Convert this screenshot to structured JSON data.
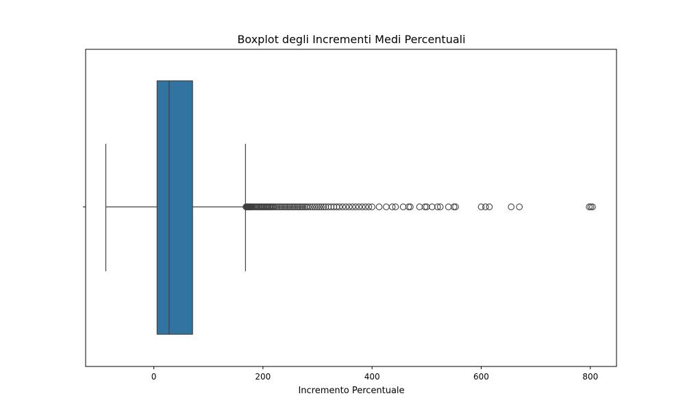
{
  "chart_data": {
    "type": "box",
    "orientation": "horizontal",
    "title": "Boxplot degli Incrementi Medi Percentuali",
    "xlabel": "Incremento Percentuale",
    "ylabel": "",
    "xlim": [
      -125,
      848
    ],
    "xticks": [
      {
        "value": 0,
        "label": "0"
      },
      {
        "value": 200,
        "label": "200"
      },
      {
        "value": 400,
        "label": "400"
      },
      {
        "value": 600,
        "label": "600"
      },
      {
        "value": 800,
        "label": "800"
      }
    ],
    "grid": false,
    "box": {
      "whisker_low": -88,
      "q1": 6,
      "median": 28,
      "q3": 71,
      "whisker_high": 168,
      "color": "#3274a1",
      "line_color": "#3f3f3f"
    },
    "outliers": [
      169,
      170,
      171,
      172,
      173,
      174,
      175,
      176,
      177,
      178,
      179,
      180,
      182,
      184,
      186,
      188,
      190,
      192,
      194,
      196,
      198,
      200,
      202,
      204,
      206,
      208,
      210,
      212,
      214,
      216,
      218,
      220,
      223,
      226,
      229,
      232,
      235,
      238,
      241,
      244,
      247,
      250,
      253,
      256,
      259,
      262,
      265,
      268,
      271,
      274,
      277,
      280,
      283,
      287,
      291,
      295,
      299,
      303,
      307,
      311,
      315,
      320,
      325,
      330,
      335,
      340,
      346,
      352,
      358,
      364,
      370,
      376,
      382,
      388,
      394,
      400,
      413,
      426,
      437,
      443,
      457,
      467,
      470,
      487,
      497,
      500,
      510,
      520,
      525,
      540,
      550,
      553,
      600,
      608,
      615,
      655,
      670,
      798,
      801,
      804
    ]
  }
}
